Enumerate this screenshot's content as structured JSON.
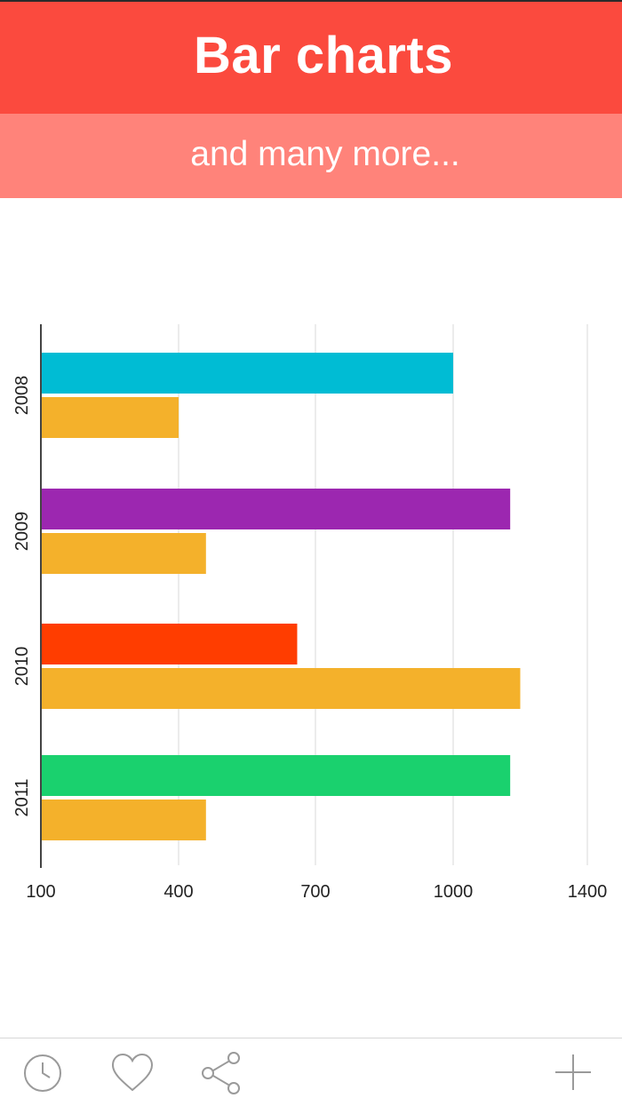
{
  "header": {
    "title": "Bar charts",
    "subtitle": "and many more..."
  },
  "colors": {
    "header_bg": "#fb4a3e",
    "subheader_bg": "#ff837a",
    "secondary_bar": "#f4b12b",
    "axis": "#444444",
    "grid": "#ececec",
    "tick_text": "#222222",
    "icon": "#9a9a9a"
  },
  "chart_data": {
    "type": "bar",
    "orientation": "horizontal",
    "categories": [
      "2008",
      "2009",
      "2010",
      "2011"
    ],
    "series": [
      {
        "values": [
          1000,
          1170,
          660,
          1170
        ],
        "colors": [
          "#00bcd4",
          "#9c27b0",
          "#ff3d00",
          "#1ad16e"
        ]
      },
      {
        "values": [
          400,
          460,
          1200,
          460
        ],
        "colors": [
          "#f4b12b",
          "#f4b12b",
          "#f4b12b",
          "#f4b12b"
        ]
      }
    ],
    "xticks": [
      100,
      400,
      700,
      1000,
      1400
    ],
    "xlim": [
      100,
      1300
    ],
    "xlabel": "",
    "ylabel": "",
    "grid": true,
    "legend": "none"
  },
  "toolbar": {
    "icons": [
      "clock-icon",
      "heart-icon",
      "share-icon",
      "plus-icon"
    ]
  }
}
